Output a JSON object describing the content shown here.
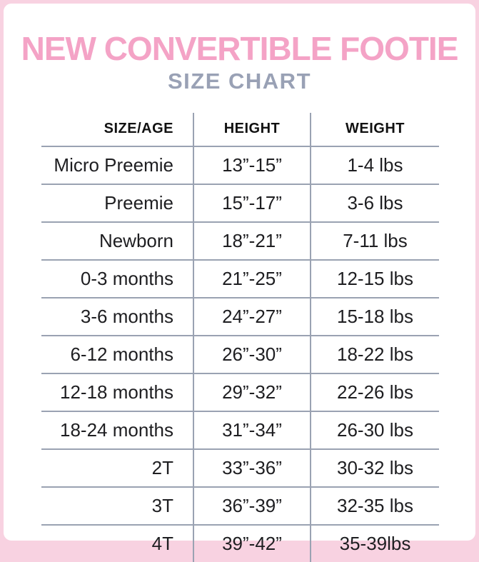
{
  "page": {
    "title": "NEW CONVERTIBLE FOOTIE",
    "subtitle": "SIZE CHART"
  },
  "colors": {
    "title-pink": "#f4a3c6",
    "border-pink": "#f8d2e1",
    "subtitle-gray": "#99a1b5",
    "line-gray": "#9aa2b2",
    "text-dark": "#1e1e21"
  },
  "chart_data": {
    "type": "table",
    "title": "NEW CONVERTIBLE FOOTIE — SIZE CHART",
    "columns": [
      "SIZE/AGE",
      "HEIGHT",
      "WEIGHT"
    ],
    "rows": [
      {
        "size_age": "Micro Preemie",
        "height": "13”-15”",
        "weight": "1-4 lbs"
      },
      {
        "size_age": "Preemie",
        "height": "15”-17”",
        "weight": "3-6 lbs"
      },
      {
        "size_age": "Newborn",
        "height": "18”-21”",
        "weight": "7-11 lbs"
      },
      {
        "size_age": "0-3 months",
        "height": "21”-25”",
        "weight": "12-15 lbs"
      },
      {
        "size_age": "3-6 months",
        "height": "24”-27”",
        "weight": "15-18 lbs"
      },
      {
        "size_age": "6-12 months",
        "height": "26”-30”",
        "weight": "18-22 lbs"
      },
      {
        "size_age": "12-18 months",
        "height": "29”-32”",
        "weight": "22-26 lbs"
      },
      {
        "size_age": "18-24 months",
        "height": "31”-34”",
        "weight": "26-30 lbs"
      },
      {
        "size_age": "2T",
        "height": "33”-36”",
        "weight": "30-32 lbs"
      },
      {
        "size_age": "3T",
        "height": "36”-39”",
        "weight": "32-35 lbs"
      },
      {
        "size_age": "4T",
        "height": "39”-42”",
        "weight": "35-39lbs"
      }
    ]
  }
}
